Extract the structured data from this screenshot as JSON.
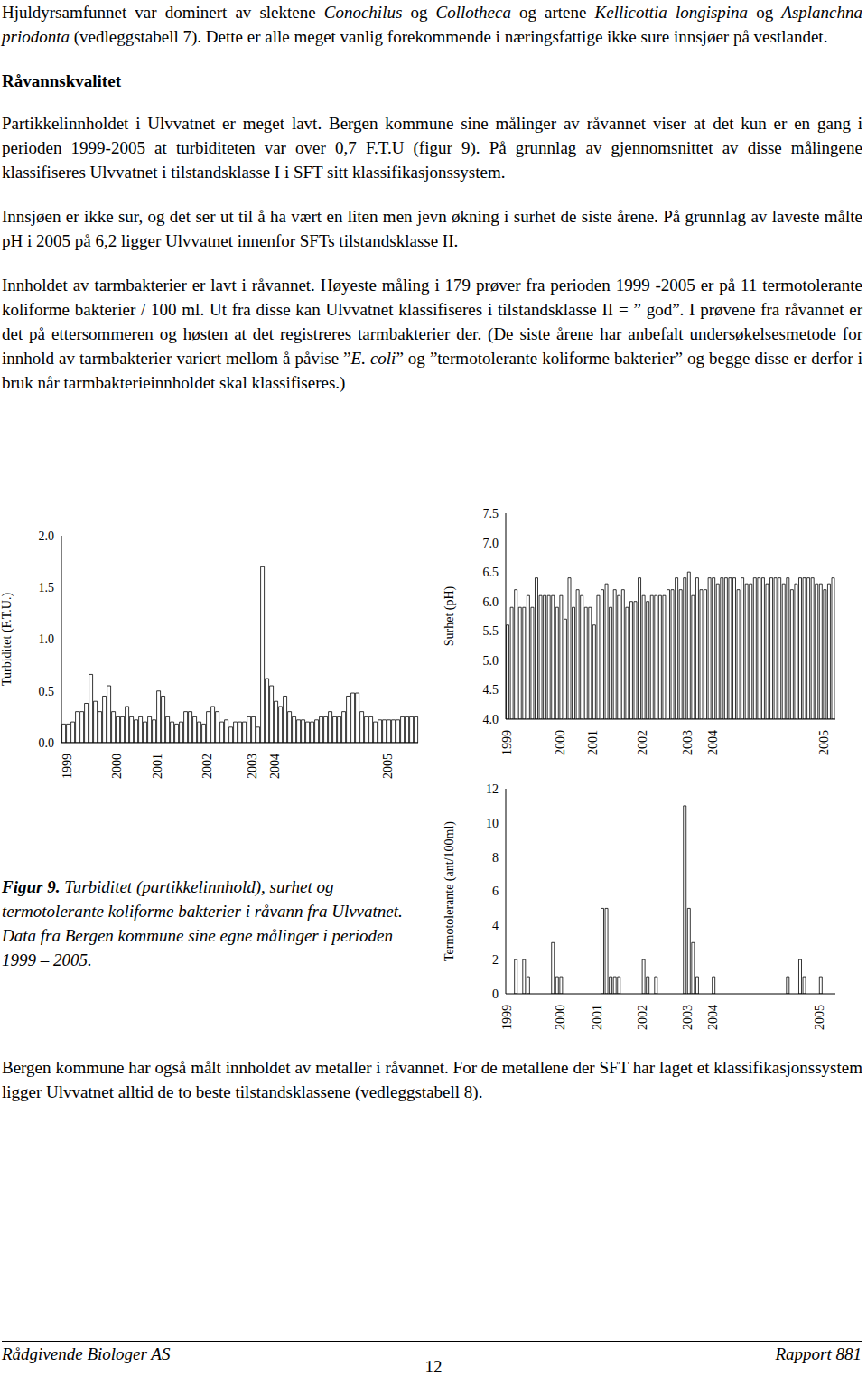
{
  "paragraphs_top": [
    [
      "Hjuldyrsamfunnet var dominert av slektene ",
      "Conochilus",
      " og ",
      "Collotheca",
      " og artene ",
      "Kellicottia longispina",
      " og ",
      "Asplanchna priodonta",
      " (vedleggstabell 7). Dette er alle meget vanlig forekommende i næringsfattige ikke sure innsjøer på vestlandet."
    ]
  ],
  "heading": "Råvannskvalitet",
  "paragraphs": [
    [
      "Partikkelinnholdet i Ulvvatnet er meget lavt. Bergen kommune sine målinger av råvannet viser at det kun er en gang i perioden 1999-2005 at turbiditeten var over 0,7 F.T.U (figur 9). På grunnlag av gjennomsnittet av disse målingene klassifiseres Ulvvatnet i tilstandsklasse I i SFT sitt klassifikasjonssystem."
    ],
    [
      "Innsjøen er ikke sur, og det ser ut til å ha vært en liten men jevn økning i surhet de siste årene. På grunnlag av laveste målte pH i 2005 på 6,2 ligger Ulvvatnet innenfor SFTs tilstandsklasse II."
    ],
    [
      "Innholdet av tarmbakterier er lavt i råvannet. Høyeste måling i 179 prøver fra perioden 1999 -2005 er på 11 termotolerante koliforme bakterier / 100 ml. Ut fra disse kan Ulvvatnet klassifiseres i tilstandsklasse II = ” god”. I prøvene fra råvannet er det på ettersommeren og høsten at det registreres tarmbakterier der. (De siste årene har anbefalt undersøkelsesmetode for innhold av tarmbakterier variert mellom å påvise ”",
      "E. coli",
      "” og ”termotolerante koliforme bakterier” og begge disse er derfor i bruk når tarmbakterieinnholdet skal klassifiseres.)"
    ]
  ],
  "chart_data": [
    {
      "type": "bar",
      "ylabel": "Turbiditet (F.T.U.)",
      "color": "#ffffff",
      "ylim": [
        0,
        2
      ],
      "yticks": [
        {
          "value": 0,
          "label": "0.0"
        },
        0.5,
        {
          "value": 1,
          "label": "1.0"
        },
        1.5,
        {
          "value": 2,
          "label": "2.0"
        }
      ],
      "categories": [
        null,
        "1999",
        null,
        null,
        null,
        null,
        null,
        null,
        null,
        null,
        null,
        null,
        "2000",
        null,
        null,
        null,
        null,
        null,
        null,
        null,
        null,
        "2001",
        null,
        null,
        null,
        null,
        null,
        null,
        null,
        null,
        null,
        null,
        "2002",
        null,
        null,
        null,
        null,
        null,
        null,
        null,
        null,
        null,
        "2003",
        null,
        null,
        null,
        null,
        "2004",
        null,
        null,
        null,
        null,
        null,
        null,
        null,
        null,
        null,
        null,
        null,
        null,
        null,
        null,
        null,
        null,
        null,
        null,
        null,
        null,
        null,
        null,
        null,
        null,
        "2005",
        null,
        null,
        null,
        null,
        null,
        null
      ],
      "values": [
        0.18,
        0.18,
        0.2,
        0.3,
        0.3,
        0.38,
        0.66,
        0.4,
        0.3,
        0.45,
        0.55,
        0.3,
        0.25,
        0.25,
        0.35,
        0.25,
        0.22,
        0.25,
        0.2,
        0.25,
        0.22,
        0.5,
        0.45,
        0.25,
        0.2,
        0.18,
        0.2,
        0.3,
        0.3,
        0.25,
        0.2,
        0.18,
        0.3,
        0.35,
        0.3,
        0.2,
        0.22,
        0.15,
        0.2,
        0.2,
        0.2,
        0.25,
        0.25,
        0.15,
        1.7,
        0.62,
        0.55,
        0.4,
        0.35,
        0.45,
        0.3,
        0.25,
        0.22,
        0.22,
        0.2,
        0.2,
        0.22,
        0.25,
        0.25,
        0.3,
        0.25,
        0.25,
        0.3,
        0.45,
        0.48,
        0.48,
        0.3,
        0.25,
        0.25,
        0.2,
        0.22,
        0.22,
        0.22,
        0.22,
        0.22,
        0.25,
        0.25,
        0.25,
        0.25
      ]
    },
    {
      "type": "bar",
      "ylabel": "Surhet (pH)",
      "color": "#ffffff",
      "ylim": [
        4,
        7.5
      ],
      "yticks": [
        {
          "value": 4,
          "label": "4.0"
        },
        4.5,
        {
          "value": 5,
          "label": "5.0"
        },
        5.5,
        {
          "value": 6,
          "label": "6.0"
        },
        6.5,
        {
          "value": 7,
          "label": "7.0"
        },
        7.5
      ],
      "categories": [
        "1999",
        null,
        null,
        null,
        null,
        null,
        null,
        null,
        null,
        null,
        null,
        null,
        null,
        "2000",
        null,
        null,
        null,
        null,
        null,
        null,
        null,
        "2001",
        null,
        null,
        null,
        null,
        null,
        null,
        null,
        null,
        null,
        null,
        null,
        "2002",
        null,
        null,
        null,
        null,
        null,
        null,
        null,
        null,
        null,
        null,
        "2003",
        null,
        null,
        null,
        null,
        null,
        "2004",
        null,
        null,
        null,
        null,
        null,
        null,
        null,
        null,
        null,
        null,
        null,
        null,
        null,
        null,
        null,
        null,
        null,
        null,
        null,
        null,
        null,
        null,
        null,
        null,
        null,
        null,
        "2005",
        null,
        null
      ],
      "values": [
        5.6,
        5.9,
        6.2,
        5.9,
        5.9,
        6.1,
        5.9,
        6.4,
        6.1,
        6.1,
        6.1,
        6.1,
        5.9,
        6.1,
        5.7,
        6.4,
        5.9,
        6.2,
        6.1,
        5.9,
        5.9,
        5.6,
        6.1,
        6.2,
        6.3,
        5.9,
        6.2,
        6.1,
        6.2,
        5.9,
        6.0,
        6.0,
        6.4,
        6.1,
        6.0,
        6.1,
        6.1,
        6.1,
        6.1,
        6.2,
        6.2,
        6.4,
        6.2,
        6.4,
        6.5,
        6.1,
        6.4,
        6.2,
        6.2,
        6.4,
        6.4,
        6.3,
        6.4,
        6.4,
        6.4,
        6.4,
        6.2,
        6.4,
        6.3,
        6.3,
        6.4,
        6.4,
        6.4,
        6.3,
        6.4,
        6.4,
        6.4,
        6.3,
        6.4,
        6.2,
        6.3,
        6.4,
        6.4,
        6.4,
        6.4,
        6.3,
        6.3,
        6.2,
        6.3,
        6.4
      ]
    },
    {
      "type": "bar",
      "ylabel": "Termotolerante (ant/100ml)",
      "color": "#ffffff",
      "ylim": [
        0,
        12
      ],
      "yticks": [
        0,
        2,
        4,
        6,
        8,
        10,
        12
      ],
      "categories": [
        "1999",
        null,
        null,
        null,
        null,
        null,
        null,
        null,
        null,
        null,
        null,
        null,
        null,
        "2000",
        null,
        null,
        null,
        null,
        null,
        null,
        null,
        null,
        "2001",
        null,
        null,
        null,
        null,
        null,
        null,
        null,
        null,
        null,
        null,
        "2002",
        null,
        null,
        null,
        null,
        null,
        null,
        null,
        null,
        null,
        null,
        "2003",
        null,
        null,
        null,
        null,
        null,
        "2004",
        null,
        null,
        null,
        null,
        null,
        null,
        null,
        null,
        null,
        null,
        null,
        null,
        null,
        null,
        null,
        null,
        null,
        null,
        null,
        null,
        null,
        null,
        null,
        null,
        null,
        "2005",
        null,
        null,
        null
      ],
      "values": [
        0,
        0,
        2,
        0,
        2,
        1,
        0,
        0,
        0,
        0,
        0,
        3,
        1,
        1,
        0,
        0,
        0,
        0,
        0,
        0,
        0,
        0,
        0,
        5,
        5,
        1,
        1,
        1,
        0,
        0,
        0,
        0,
        0,
        2,
        1,
        0,
        1,
        0,
        0,
        0,
        0,
        0,
        0,
        11,
        5,
        3,
        1,
        0,
        0,
        0,
        1,
        0,
        0,
        0,
        0,
        0,
        0,
        0,
        0,
        0,
        0,
        0,
        0,
        0,
        0,
        0,
        0,
        0,
        1,
        0,
        0,
        2,
        1,
        0,
        0,
        0,
        1,
        0,
        0,
        0
      ]
    }
  ],
  "caption": {
    "label": "Figur 9.",
    "text": " Turbiditet (partikkelinnhold), surhet og termotolerante koliforme bakterier i råvann fra Ulvvatnet. Data fra Bergen kommune sine egne målinger i perioden 1999 – 2005."
  },
  "paragraph_bottom": [
    "Bergen kommune har også målt innholdet av metaller i råvannet. For de metallene der SFT har laget et klassifikasjonssystem ligger Ulvvatnet alltid de to beste tilstandsklassene (vedleggstabell 8)."
  ],
  "footer": {
    "left": "Rådgivende Biologer AS",
    "page": 12,
    "right": "Rapport 881"
  }
}
